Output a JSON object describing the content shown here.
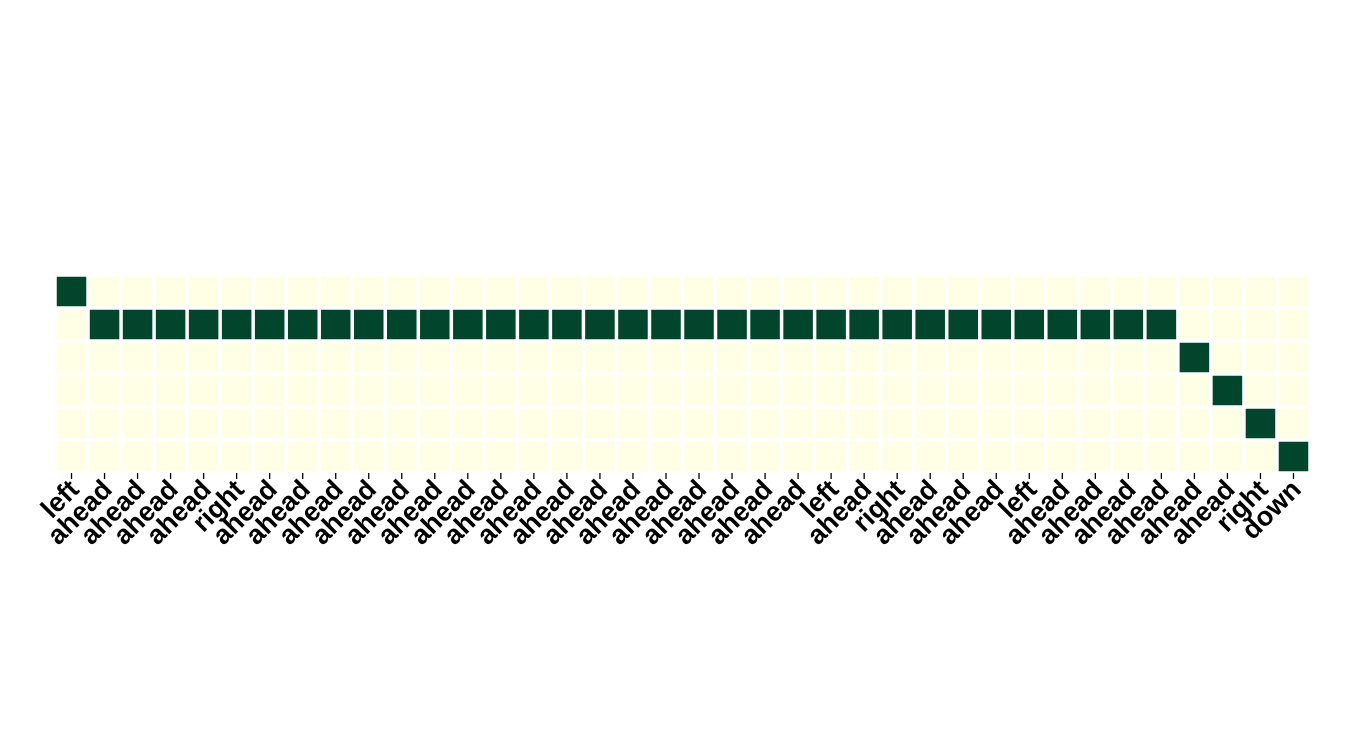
{
  "chart_data": {
    "type": "heatmap",
    "title": "",
    "xlabel": "",
    "ylabel": "",
    "x_tick_labels": [
      "left",
      "ahead",
      "ahead",
      "ahead",
      "ahead",
      "right",
      "ahead",
      "ahead",
      "ahead",
      "ahead",
      "ahead",
      "ahead",
      "ahead",
      "ahead",
      "ahead",
      "ahead",
      "ahead",
      "ahead",
      "ahead",
      "ahead",
      "ahead",
      "ahead",
      "ahead",
      "left",
      "ahead",
      "right",
      "ahead",
      "ahead",
      "ahead",
      "left",
      "ahead",
      "ahead",
      "ahead",
      "ahead",
      "ahead",
      "ahead",
      "right",
      "down"
    ],
    "y_tick_labels": [],
    "rows": 6,
    "active_row_per_column": [
      0,
      1,
      1,
      1,
      1,
      1,
      1,
      1,
      1,
      1,
      1,
      1,
      1,
      1,
      1,
      1,
      1,
      1,
      1,
      1,
      1,
      1,
      1,
      1,
      1,
      1,
      1,
      1,
      1,
      1,
      1,
      1,
      1,
      1,
      2,
      3,
      4,
      5
    ],
    "active_value": 1,
    "inactive_value": 0,
    "colors": {
      "active": "#00452c",
      "inactive": "#ffffe5",
      "cell_border": "#ffffff",
      "tick": "#000000"
    },
    "grid": false,
    "legend": "none"
  }
}
